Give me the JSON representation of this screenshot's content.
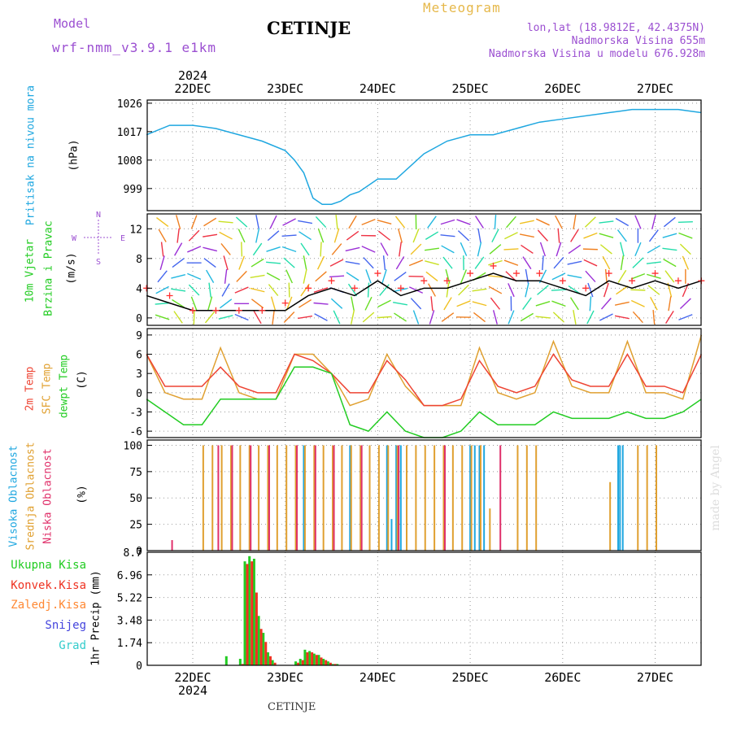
{
  "header": {
    "model_label": "Model",
    "model_name": "wrf-nmm_v3.9.1 e1km",
    "station": "CETINJE",
    "product": "Meteogram",
    "lonlat": "lon,lat (18.9812E, 42.4375N)",
    "altitude": "Nadmorska Visina 655m",
    "model_altitude": "Nadmorska Visina u modelu 676.928m"
  },
  "footer": {
    "station": "CETINJE",
    "credit": "made by Angel"
  },
  "colors": {
    "pressure": "#1fa7e0",
    "wind_speed": "#000000",
    "wind_gust": "#ff3030",
    "temp_2m": "#ee4433",
    "temp_sfc": "#e0a030",
    "dewpoint": "#22cc22",
    "cloud_high": "#1fa7e0",
    "cloud_mid": "#e0a030",
    "cloud_low": "#e0306a",
    "precip_total": "#22cc22",
    "precip_conv": "#ee3322",
    "precip_frozen": "#ff8833",
    "precip_snow": "#4444dd",
    "precip_graupel": "#33cccc"
  },
  "chart_data": [
    {
      "id": "pressure",
      "type": "line",
      "ylabel_line1": "Pritisak na nivou mora",
      "ylabel_line2": "(hPa)",
      "yticks": [
        999,
        1008,
        1017,
        1026
      ],
      "ylim": [
        992,
        1027
      ],
      "x_days": [
        "22DEC",
        "23DEC",
        "24DEC",
        "25DEC",
        "26DEC",
        "27DEC"
      ],
      "x_year": "2024",
      "x": [
        0,
        0.25,
        0.5,
        0.75,
        1.0,
        1.25,
        1.5,
        1.6,
        1.7,
        1.8,
        1.9,
        2.0,
        2.1,
        2.2,
        2.3,
        2.5,
        2.7,
        3.0,
        3.25,
        3.5,
        3.75,
        4.0,
        4.25,
        4.5,
        5.0,
        5.25,
        5.5,
        5.75,
        6.0
      ],
      "values": [
        1016,
        1019,
        1019,
        1018,
        1016,
        1014,
        1011,
        1008,
        1004,
        996,
        994,
        994,
        995,
        997,
        998,
        1002,
        1002,
        1010,
        1014,
        1016,
        1016,
        1018,
        1020,
        1021,
        1023,
        1024,
        1024,
        1024,
        1023
      ]
    },
    {
      "id": "wind",
      "type": "line",
      "ylabel_line1": "10m Vjetar",
      "ylabel_line2": "Brzina i Pravac",
      "ylabel_line3": "(m/s)",
      "compass": {
        "north": "N",
        "south": "S",
        "east": "E",
        "west": "W"
      },
      "yticks": [
        0,
        4,
        8,
        12
      ],
      "ylim": [
        -1,
        14
      ],
      "x": [
        0,
        0.25,
        0.5,
        0.75,
        1.0,
        1.25,
        1.5,
        1.75,
        2.0,
        2.25,
        2.5,
        2.75,
        3.0,
        3.25,
        3.5,
        3.75,
        4.0,
        4.25,
        4.5,
        4.75,
        5.0,
        5.25,
        5.5,
        5.75,
        6.0
      ],
      "series": [
        {
          "name": "speed",
          "values": [
            3,
            2,
            1,
            1,
            1,
            1,
            1,
            3,
            4,
            3,
            5,
            3,
            4,
            4,
            5,
            6,
            5,
            5,
            4,
            3,
            5,
            4,
            5,
            4,
            5
          ]
        },
        {
          "name": "gust",
          "values": [
            4,
            3,
            1,
            1,
            1,
            1,
            2,
            4,
            5,
            4,
            6,
            4,
            5,
            5,
            6,
            7,
            6,
            6,
            5,
            4,
            6,
            5,
            6,
            5,
            5
          ]
        }
      ],
      "barbs_rows": 8,
      "barbs_cols": 36
    },
    {
      "id": "temperature",
      "type": "line",
      "ylabel_line1": "2m Temp",
      "ylabel_line2": "SFC Temp",
      "ylabel_line3": "dewpt Temp",
      "ylabel_line4": "(C)",
      "yticks": [
        -6,
        -3,
        0,
        3,
        6,
        9
      ],
      "ylim": [
        -7,
        10
      ],
      "x": [
        0,
        0.2,
        0.4,
        0.6,
        0.8,
        1.0,
        1.2,
        1.4,
        1.6,
        1.8,
        2.0,
        2.2,
        2.4,
        2.6,
        2.8,
        3.0,
        3.2,
        3.4,
        3.6,
        3.8,
        4.0,
        4.2,
        4.4,
        4.6,
        4.8,
        5.0,
        5.2,
        5.4,
        5.6,
        5.8,
        6.0
      ],
      "series": [
        {
          "name": "2m",
          "values": [
            6,
            1,
            1,
            1,
            4,
            1,
            0,
            0,
            6,
            5,
            3,
            0,
            0,
            5,
            2,
            -2,
            -2,
            -1,
            5,
            1,
            0,
            1,
            6,
            2,
            1,
            1,
            6,
            1,
            1,
            0,
            6
          ]
        },
        {
          "name": "sfc",
          "values": [
            6,
            0,
            -1,
            -1,
            7,
            0,
            -1,
            -1,
            6,
            6,
            3,
            -2,
            -1,
            6,
            1,
            -2,
            -2,
            -2,
            7,
            0,
            -1,
            0,
            8,
            1,
            0,
            0,
            8,
            0,
            0,
            -1,
            9
          ]
        },
        {
          "name": "dewpt",
          "values": [
            -1,
            -3,
            -5,
            -5,
            -1,
            -1,
            -1,
            -1,
            4,
            4,
            3,
            -5,
            -6,
            -3,
            -6,
            -7,
            -7,
            -6,
            -3,
            -5,
            -5,
            -5,
            -3,
            -4,
            -4,
            -4,
            -3,
            -4,
            -4,
            -3,
            -1
          ]
        }
      ]
    },
    {
      "id": "clouds",
      "type": "bar",
      "ylabel_line1": "Visoka Oblacnost",
      "ylabel_line2": "Srednja Oblacnost",
      "ylabel_line3": "Niska Oblacnost",
      "ylabel_line4": "(%)",
      "yticks": [
        0,
        25,
        50,
        75,
        100
      ],
      "ylim": [
        0,
        105
      ],
      "series": [
        {
          "name": "high",
          "x": [
            1.7,
            2.2,
            2.6,
            2.65,
            2.7,
            2.75,
            3.5,
            3.55,
            3.6,
            3.65,
            5.1,
            5.12,
            5.15
          ],
          "values": [
            100,
            100,
            100,
            30,
            100,
            100,
            100,
            100,
            100,
            100,
            100,
            100,
            100
          ]
        },
        {
          "name": "mid",
          "x": [
            0.6,
            0.7,
            0.8,
            0.9,
            1.0,
            1.1,
            1.2,
            1.3,
            1.4,
            1.5,
            1.6,
            1.7,
            1.8,
            1.9,
            2.0,
            2.1,
            2.2,
            2.3,
            2.4,
            2.5,
            2.6,
            2.7,
            2.8,
            2.9,
            3.0,
            3.1,
            3.2,
            3.3,
            3.4,
            3.5,
            3.6,
            3.7,
            4.0,
            4.1,
            4.2,
            5.0,
            5.3,
            5.4,
            5.5
          ],
          "values": [
            100,
            100,
            100,
            100,
            100,
            100,
            100,
            100,
            100,
            100,
            100,
            100,
            100,
            100,
            100,
            100,
            100,
            100,
            100,
            100,
            100,
            100,
            100,
            100,
            100,
            100,
            100,
            100,
            100,
            100,
            100,
            40,
            100,
            100,
            100,
            65,
            100,
            100,
            100
          ]
        },
        {
          "name": "low",
          "x": [
            0.25,
            0.75,
            0.9,
            1.1,
            1.3,
            1.6,
            1.8,
            2.0,
            2.3,
            2.7,
            3.2,
            3.8
          ],
          "values": [
            10,
            100,
            100,
            100,
            100,
            100,
            100,
            100,
            100,
            100,
            100,
            100
          ]
        }
      ]
    },
    {
      "id": "precip",
      "type": "bar",
      "ylabel": "1hr Precip (mm)",
      "yticks": [
        0,
        1.74,
        3.48,
        5.22,
        6.96,
        8.7
      ],
      "ylim": [
        0,
        8.7
      ],
      "legend": [
        "Ukupna Kisa",
        "Konvek.Kisa",
        "Zaledj.Kisa",
        "Snijeg",
        "Grad"
      ],
      "x": [
        0.85,
        1.0,
        1.05,
        1.1,
        1.15,
        1.2,
        1.25,
        1.3,
        1.35,
        1.6,
        1.65,
        1.7,
        1.75,
        1.8,
        1.85,
        1.9,
        1.95,
        2.0,
        2.05
      ],
      "series": [
        {
          "name": "Ukupna Kisa",
          "values": [
            0.7,
            0.5,
            8.0,
            8.4,
            8.2,
            3.8,
            2.5,
            1.0,
            0.4,
            0.3,
            0.5,
            1.2,
            1.1,
            0.9,
            0.8,
            0.5,
            0.3,
            0.1,
            0.1
          ]
        },
        {
          "name": "Konvek.Kisa",
          "values": [
            0.0,
            0.1,
            7.8,
            8.0,
            5.6,
            2.8,
            1.8,
            0.7,
            0.2,
            0.2,
            0.4,
            1.0,
            1.0,
            0.8,
            0.6,
            0.4,
            0.2,
            0.1,
            0.0
          ]
        }
      ]
    }
  ]
}
